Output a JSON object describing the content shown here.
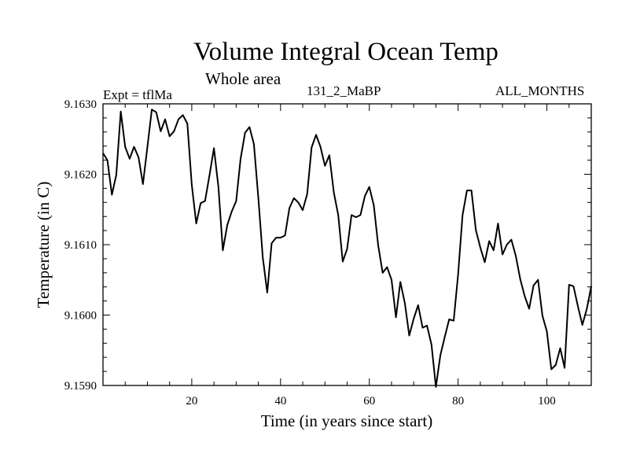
{
  "header": {
    "title": "Volume Integral Ocean Temp",
    "subtitle": "Whole area",
    "expt": "Expt = tflMa",
    "run": "131_2_MaBP",
    "months": "ALL_MONTHS"
  },
  "chart_data": {
    "type": "line",
    "title": "Volume Integral Ocean Temp",
    "xlabel": "Time (in years since start)",
    "ylabel": "Temperature (in C)",
    "xlim": [
      0,
      110
    ],
    "ylim": [
      9.159,
      9.163
    ],
    "xticks": [
      20,
      40,
      60,
      80,
      100
    ],
    "yticks": [
      "9.1590",
      "9.1600",
      "9.1610",
      "9.1620",
      "9.1630"
    ],
    "grid": false,
    "series": [
      {
        "name": "Temperature",
        "x": [
          0,
          1,
          2,
          3,
          4,
          5,
          6,
          7,
          8,
          9,
          10,
          11,
          12,
          13,
          14,
          15,
          16,
          17,
          18,
          19,
          20,
          21,
          22,
          23,
          24,
          25,
          26,
          27,
          28,
          29,
          30,
          31,
          32,
          33,
          34,
          35,
          36,
          37,
          38,
          39,
          40,
          41,
          42,
          43,
          44,
          45,
          46,
          47,
          48,
          49,
          50,
          51,
          52,
          53,
          54,
          55,
          56,
          57,
          58,
          59,
          60,
          61,
          62,
          63,
          64,
          65,
          66,
          67,
          68,
          69,
          70,
          71,
          72,
          73,
          74,
          75,
          76,
          77,
          78,
          79,
          80,
          81,
          82,
          83,
          84,
          85,
          86,
          87,
          88,
          89,
          90,
          91,
          92,
          93,
          94,
          95,
          96,
          97,
          98,
          99,
          100,
          101,
          102,
          103,
          104,
          105,
          106,
          107,
          108,
          109,
          110
        ],
        "values": [
          9.1623,
          9.1622,
          9.16171,
          9.16199,
          9.16289,
          9.16239,
          9.16222,
          9.16239,
          9.16224,
          9.16186,
          9.16239,
          9.16292,
          9.16288,
          9.16261,
          9.16278,
          9.16254,
          9.16261,
          9.16278,
          9.16284,
          9.16272,
          9.16185,
          9.1613,
          9.16159,
          9.16162,
          9.16199,
          9.16237,
          9.16182,
          9.16092,
          9.16128,
          9.16147,
          9.16162,
          9.16222,
          9.16259,
          9.16267,
          9.16243,
          9.16166,
          9.16082,
          9.16032,
          9.16102,
          9.1611,
          9.1611,
          9.16113,
          9.16152,
          9.16166,
          9.1616,
          9.16149,
          9.16172,
          9.16238,
          9.16256,
          9.16239,
          9.16212,
          9.16227,
          9.16174,
          9.16142,
          9.16076,
          9.16094,
          9.16142,
          9.16139,
          9.16142,
          9.16169,
          9.16182,
          9.16156,
          9.16099,
          9.1606,
          9.16068,
          9.1605,
          9.15997,
          9.16047,
          9.16017,
          9.15971,
          9.15995,
          9.16014,
          9.15982,
          9.15985,
          9.15958,
          9.15898,
          9.15943,
          9.15969,
          9.15994,
          9.15992,
          9.16057,
          9.16142,
          9.16177,
          9.16177,
          9.16121,
          9.16096,
          9.16075,
          9.16105,
          9.16092,
          9.1613,
          9.16086,
          9.161,
          9.16107,
          9.16084,
          9.16051,
          9.16027,
          9.16009,
          9.16042,
          9.1605,
          9.15999,
          9.15977,
          9.15923,
          9.15929,
          9.15953,
          9.15925,
          9.16043,
          9.16041,
          9.16012,
          9.15986,
          9.16009,
          9.16041
        ]
      }
    ]
  }
}
